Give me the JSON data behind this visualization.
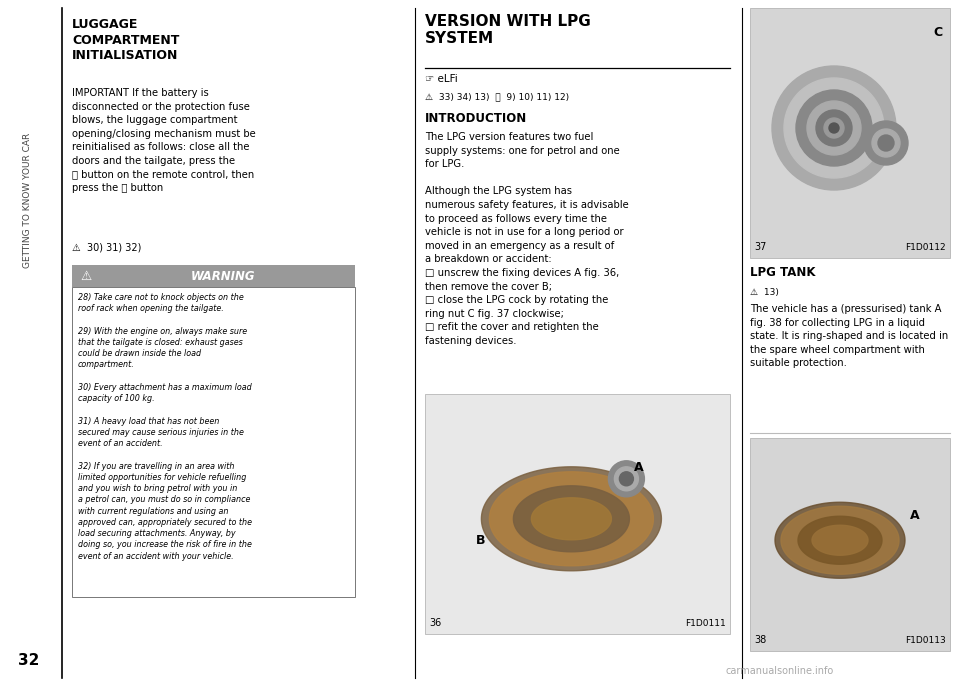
{
  "bg_color": "#ffffff",
  "page_width": 9.6,
  "page_height": 6.86,
  "dpi": 100,
  "sidebar_text": "GETTING TO KNOW YOUR CAR",
  "page_number": "32",
  "col1_title": "LUGGAGE\nCOMPARTMENT\nINITIALISATION",
  "col1_body1": "IMPORTANT If the battery is\ndisconnected or the protection fuse\nblows, the luggage compartment\nopening/closing mechanism must be\nreinitialised as follows: close all the\ndoors and the tailgate, press the\n⚿ button on the remote control, then\npress the ⚿ button",
  "col1_warn_ref": "⚠  30) 31) 32)",
  "warning_header": "WARNING",
  "warning_body": "28) Take care not to knock objects on the\nroof rack when opening the tailgate.\n\n29) With the engine on, always make sure\nthat the tailgate is closed: exhaust gases\ncould be drawn inside the load\ncompartment.\n\n30) Every attachment has a maximum load\ncapacity of 100 kg.\n\n31) A heavy load that has not been\nsecured may cause serious injuries in the\nevent of an accident.\n\n32) If you are travelling in an area with\nlimited opportunities for vehicle refuelling\nand you wish to bring petrol with you in\na petrol can, you must do so in compliance\nwith current regulations and using an\napproved can, appropriately secured to the\nload securing attachments. Anyway, by\ndoing so, you increase the risk of fire in the\nevent of an accident with your vehicle.",
  "col2_title": "VERSION WITH LPG\nSYSTEM",
  "col2_icons": "☞ eLFi",
  "col2_ref": "⚠  33) 34) 13)  ⚿  9) 10) 11) 12)",
  "col2_intro_title": "INTRODUCTION",
  "col2_intro_body": "The LPG version features two fuel\nsupply systems: one for petrol and one\nfor LPG.\n\nAlthough the LPG system has\nnumerous safety features, it is advisable\nto proceed as follows every time the\nvehicle is not in use for a long period or\nmoved in an emergency as a result of\na breakdown or accident:\n□ unscrew the fixing devices A fig. 36,\nthen remove the cover B;\n□ close the LPG cock by rotating the\nring nut C fig. 37 clockwise;\n□ refit the cover and retighten the\nfastening devices.",
  "col2_fig_num": "36",
  "col2_fig_code": "F1D0111",
  "col3_lpgtank_title": "LPG TANK",
  "col3_lpgtank_ref": "⚠  13)",
  "col3_lpgtank_body": "The vehicle has a (pressurised) tank A\nfig. 38 for collecting LPG in a liquid\nstate. It is ring-shaped and is located in\nthe spare wheel compartment with\nsuitable protection.",
  "col3_fig1_num": "37",
  "col3_fig1_code": "F1D0112",
  "col3_fig2_num": "38",
  "col3_fig2_code": "F1D0113",
  "watermark": "carmanualsonline.info"
}
